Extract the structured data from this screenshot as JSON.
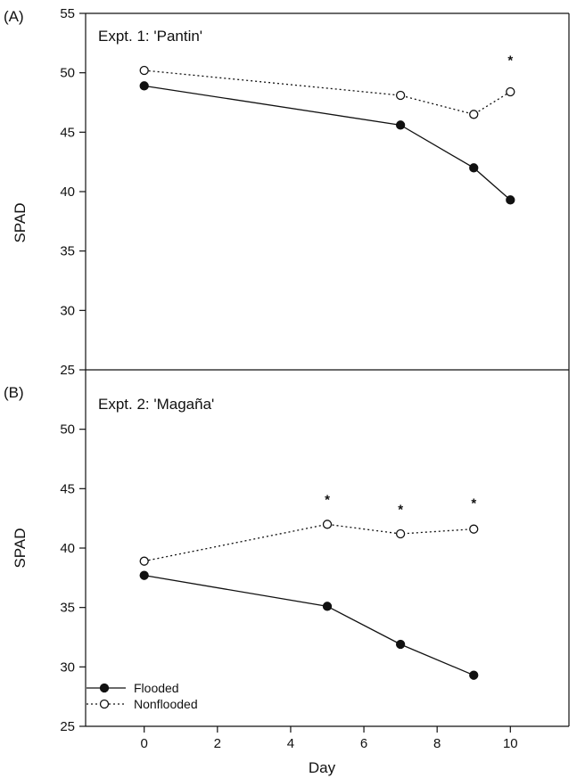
{
  "chart_data": [
    {
      "type": "line",
      "panel_label": "(A)",
      "title": "Expt. 1: 'Pantin'",
      "xlabel": "",
      "ylabel": "SPAD",
      "xlim": [
        -1.6,
        11.6
      ],
      "ylim": [
        25,
        55
      ],
      "yticks": [
        25,
        30,
        35,
        40,
        45,
        50,
        55
      ],
      "xticks": [],
      "series": [
        {
          "name": "Flooded",
          "marker": "filled-circle",
          "line": "solid",
          "x": [
            0,
            7,
            9,
            10
          ],
          "y": [
            48.9,
            45.6,
            42.0,
            39.3
          ]
        },
        {
          "name": "Nonflooded",
          "marker": "open-circle",
          "line": "dotted",
          "x": [
            0,
            7,
            9,
            10
          ],
          "y": [
            50.2,
            48.1,
            46.5,
            48.4
          ]
        }
      ],
      "annotations": [
        {
          "text": "*",
          "x": 10,
          "y": 51.3
        }
      ]
    },
    {
      "type": "line",
      "panel_label": "(B)",
      "title": "Expt. 2: 'Magaña'",
      "xlabel": "Day",
      "ylabel": "SPAD",
      "xlim": [
        -1.6,
        11.6
      ],
      "ylim": [
        25,
        55
      ],
      "yticks": [
        25,
        30,
        35,
        40,
        45,
        50
      ],
      "xticks": [
        0,
        2,
        4,
        6,
        8,
        10
      ],
      "series": [
        {
          "name": "Flooded",
          "marker": "filled-circle",
          "line": "solid",
          "x": [
            0,
            5,
            7,
            9
          ],
          "y": [
            37.7,
            35.1,
            31.9,
            29.3
          ]
        },
        {
          "name": "Nonflooded",
          "marker": "open-circle",
          "line": "dotted",
          "x": [
            0,
            5,
            7,
            9
          ],
          "y": [
            38.9,
            42.0,
            41.2,
            41.6
          ]
        }
      ],
      "annotations": [
        {
          "text": "*",
          "x": 5,
          "y": 44.3
        },
        {
          "text": "*",
          "x": 7,
          "y": 43.5
        },
        {
          "text": "*",
          "x": 9,
          "y": 44.0
        }
      ],
      "legend": {
        "placement": "bottom-left",
        "entries": [
          "Flooded",
          "Nonflooded"
        ]
      }
    }
  ]
}
